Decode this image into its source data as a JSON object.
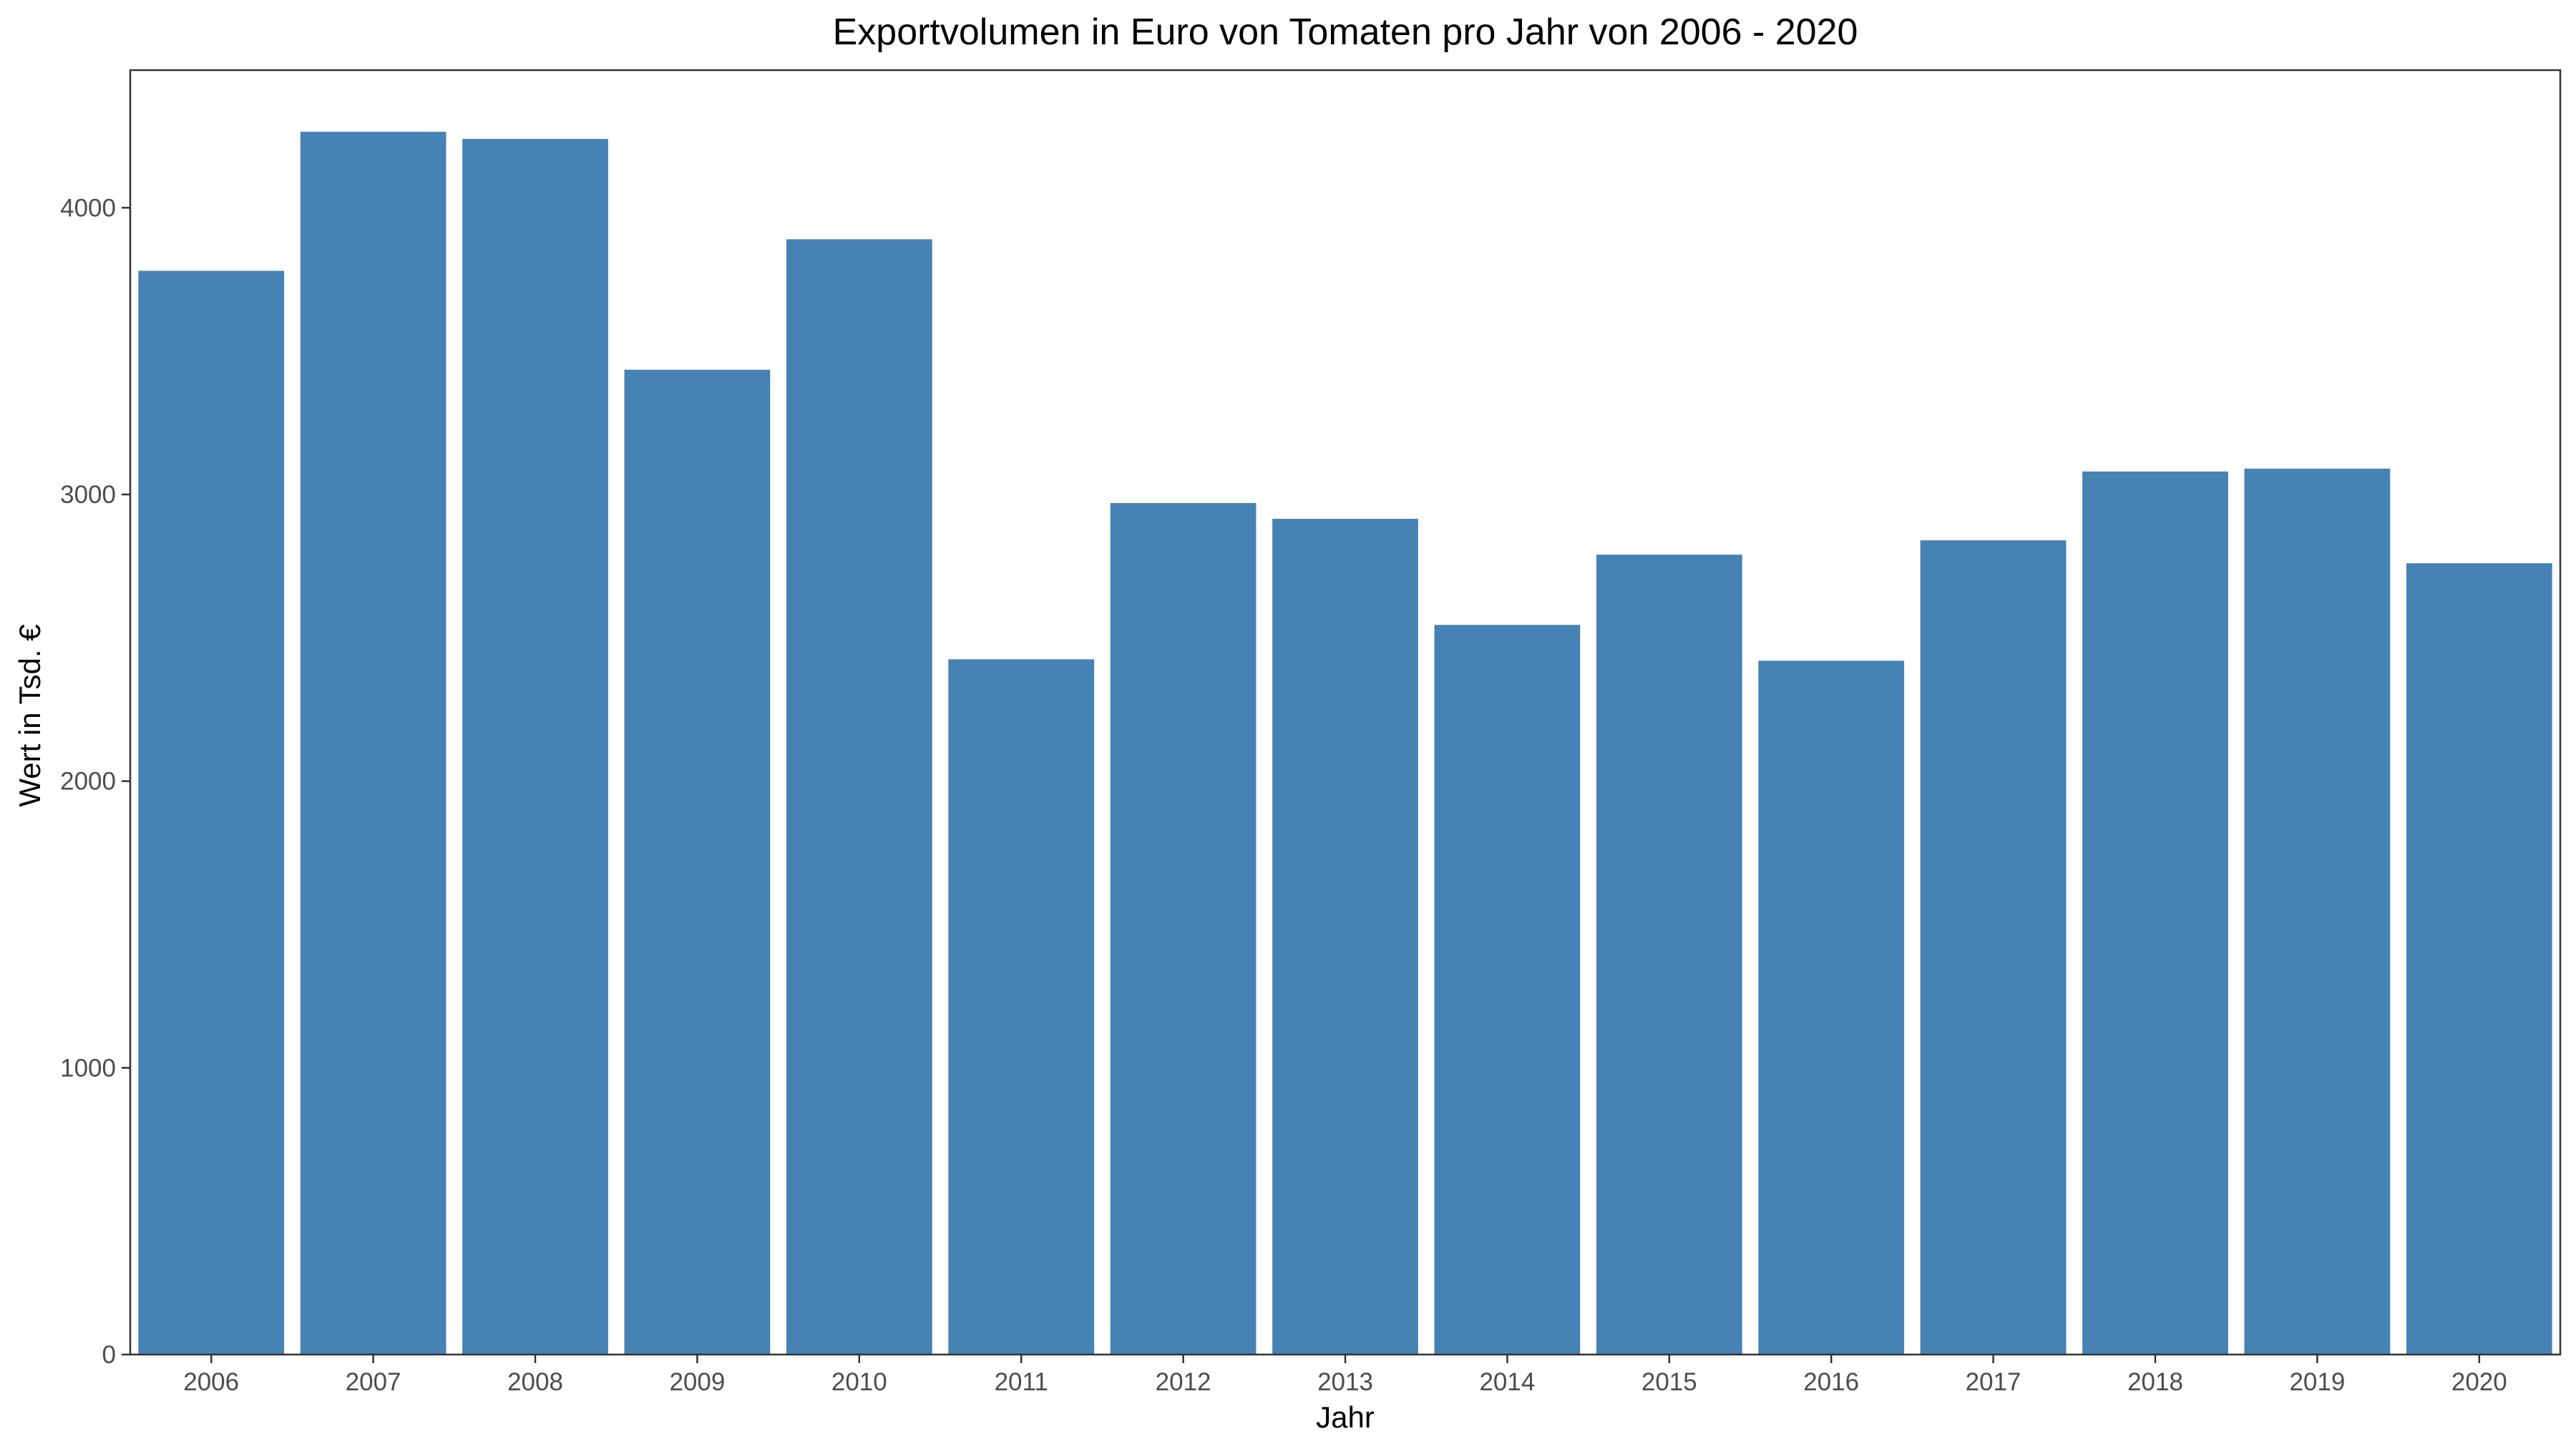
{
  "chart_data": {
    "type": "bar",
    "title": "Exportvolumen in Euro von Tomaten pro Jahr von 2006 - 2020",
    "xlabel": "Jahr",
    "ylabel": "Wert in Tsd. €",
    "categories": [
      "2006",
      "2007",
      "2008",
      "2009",
      "2010",
      "2011",
      "2012",
      "2013",
      "2014",
      "2015",
      "2016",
      "2017",
      "2018",
      "2019",
      "2020"
    ],
    "values": [
      3780,
      4265,
      4240,
      3435,
      3890,
      2425,
      2970,
      2915,
      2545,
      2790,
      2420,
      2840,
      3080,
      3090,
      2760
    ],
    "yticks": [
      0,
      1000,
      2000,
      3000,
      4000
    ],
    "ylim": [
      0,
      4480
    ],
    "grid": false,
    "bar_color": "#4682B4",
    "axis_color": "#333333",
    "tick_label_color": "#4d4d4d"
  }
}
